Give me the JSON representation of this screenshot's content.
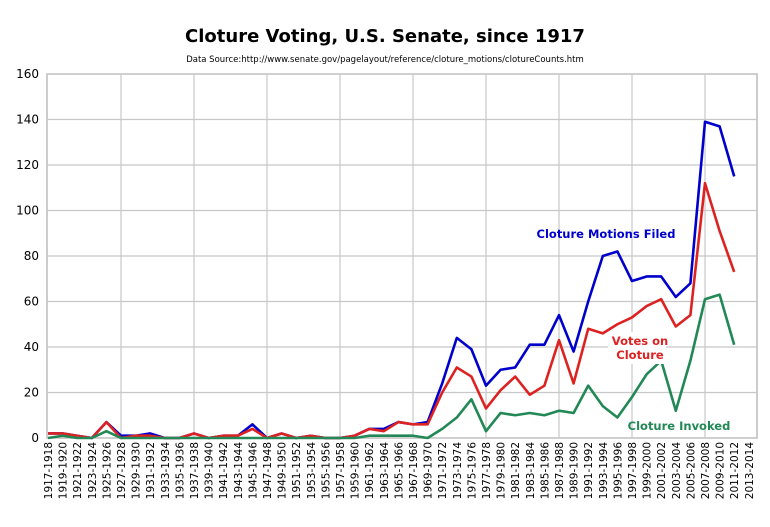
{
  "chart_data": {
    "type": "line",
    "title": "Cloture Voting, U.S. Senate, since 1917",
    "subtitle": "Data Source:http://www.senate.gov/pagelayout/reference/cloture_motions/clotureCounts.htm",
    "xlabel": "",
    "ylabel": "",
    "ylim": [
      0,
      160
    ],
    "yticks": [
      0,
      20,
      40,
      60,
      80,
      100,
      120,
      140,
      160
    ],
    "grid": true,
    "legend": "inline labels",
    "categories": [
      "1917-1918",
      "1919-1920",
      "1921-1922",
      "1923-1924",
      "1925-1926",
      "1927-1928",
      "1929-1930",
      "1931-1932",
      "1933-1934",
      "1935-1936",
      "1937-1938",
      "1939-1940",
      "1941-1942",
      "1943-1944",
      "1945-1946",
      "1947-1948",
      "1949-1950",
      "1951-1952",
      "1953-1954",
      "1955-1956",
      "1957-1958",
      "1959-1960",
      "1961-1962",
      "1963-1964",
      "1965-1966",
      "1967-1968",
      "1969-1970",
      "1971-1972",
      "1973-1974",
      "1975-1976",
      "1977-1978",
      "1979-1980",
      "1981-1982",
      "1983-1984",
      "1985-1986",
      "1987-1988",
      "1989-1990",
      "1991-1992",
      "1993-1994",
      "1995-1996",
      "1997-1998",
      "1999-2000",
      "2001-2002",
      "2003-2004",
      "2005-2006",
      "2007-2008",
      "2009-2010",
      "2011-2012",
      "2013-2014"
    ],
    "series": [
      {
        "name": "Cloture Motions Filed",
        "color": "#0000cc",
        "values": [
          2,
          2,
          1,
          0,
          7,
          1,
          1,
          2,
          0,
          0,
          2,
          0,
          1,
          1,
          6,
          0,
          2,
          0,
          1,
          0,
          0,
          1,
          4,
          4,
          7,
          6,
          7,
          24,
          44,
          39,
          23,
          30,
          31,
          41,
          41,
          54,
          38,
          60,
          80,
          82,
          69,
          71,
          71,
          62,
          68,
          139,
          137,
          115,
          null
        ]
      },
      {
        "name": "Votes on Cloture",
        "color": "#dd2222",
        "values": [
          2,
          2,
          1,
          0,
          7,
          0,
          1,
          1,
          0,
          0,
          2,
          0,
          1,
          1,
          4,
          0,
          2,
          0,
          1,
          0,
          0,
          1,
          4,
          3,
          7,
          6,
          6,
          20,
          31,
          27,
          13,
          21,
          27,
          19,
          23,
          43,
          24,
          48,
          46,
          50,
          53,
          58,
          61,
          49,
          54,
          112,
          91,
          73,
          null
        ]
      },
      {
        "name": "Cloture Invoked",
        "color": "#228855",
        "values": [
          0,
          1,
          0,
          0,
          3,
          0,
          0,
          0,
          0,
          0,
          0,
          0,
          0,
          0,
          0,
          0,
          0,
          0,
          0,
          0,
          0,
          0,
          1,
          1,
          1,
          1,
          0,
          4,
          9,
          17,
          3,
          11,
          10,
          11,
          10,
          12,
          11,
          23,
          14,
          9,
          18,
          28,
          34,
          12,
          34,
          61,
          63,
          41,
          null
        ]
      }
    ]
  }
}
